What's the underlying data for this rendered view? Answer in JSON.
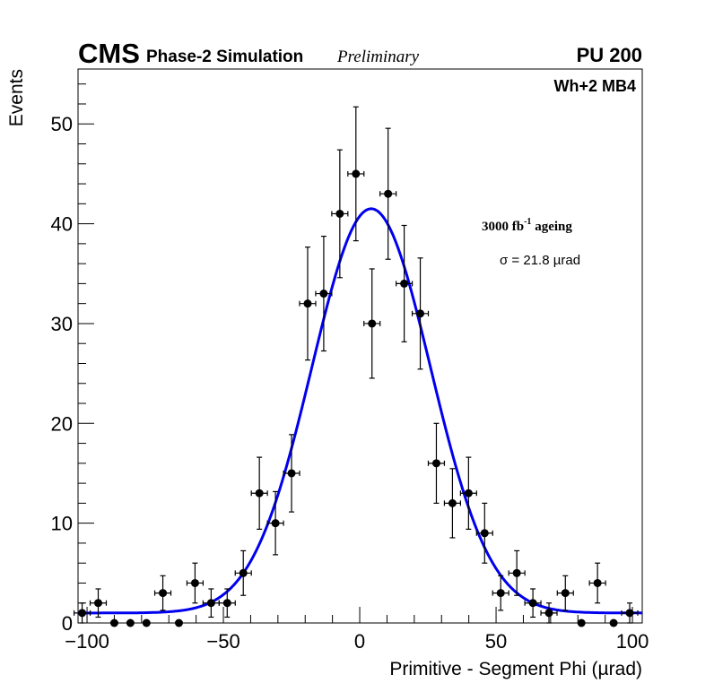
{
  "chart_data": {
    "type": "scatter",
    "title": "",
    "header": {
      "experiment": "CMS",
      "subtitle": "Phase-2 Simulation",
      "status": "Preliminary",
      "pileup": "PU 200"
    },
    "annotations": {
      "chamber": "Wh+2 MB4",
      "lumi_main": "3000 fb",
      "lumi_exp": "-1",
      "lumi_suffix": " ageing",
      "sigma": "σ = 21.8 µrad"
    },
    "xlabel": "Primitive - Segment Phi (µrad)",
    "ylabel": "Events",
    "xlim": [
      -103.3,
      103.6
    ],
    "ylim": [
      0,
      55.5
    ],
    "xticks": [
      -100,
      -50,
      0,
      50,
      100
    ],
    "xtick_labels": [
      "−100",
      "−50",
      "0",
      "50",
      "100"
    ],
    "yticks": [
      0,
      10,
      20,
      30,
      40,
      50
    ],
    "ytick_labels": [
      "0",
      "10",
      "20",
      "30",
      "40",
      "50"
    ],
    "grid": false,
    "bin_width": 5.91,
    "series": [
      {
        "name": "data",
        "marker": "circle",
        "color": "#000000",
        "x": [
          -101.8,
          -95.9,
          -90.0,
          -84.1,
          -78.2,
          -72.2,
          -66.3,
          -60.4,
          -54.5,
          -48.6,
          -42.7,
          -36.8,
          -30.9,
          -25.0,
          -19.1,
          -13.2,
          -7.3,
          -1.4,
          4.5,
          10.4,
          16.3,
          22.2,
          28.1,
          34.0,
          39.9,
          45.8,
          51.7,
          57.6,
          63.5,
          69.4,
          75.4,
          81.3,
          87.2,
          93.1,
          99.0,
          104.9
        ],
        "y": [
          1,
          2,
          0,
          0,
          0,
          3,
          0,
          4,
          2,
          2,
          5,
          13,
          10,
          15,
          32,
          33,
          41,
          45,
          30,
          43,
          34,
          31,
          16,
          12,
          13,
          9,
          3,
          5,
          2,
          1,
          3,
          0,
          4,
          0,
          1,
          null
        ]
      },
      {
        "name": "gaussian fit",
        "type": "line",
        "color": "#0000ee",
        "params": {
          "constant": 40.5,
          "mean": 4.2,
          "sigma": 21.8,
          "baseline": 1.0
        }
      }
    ]
  }
}
